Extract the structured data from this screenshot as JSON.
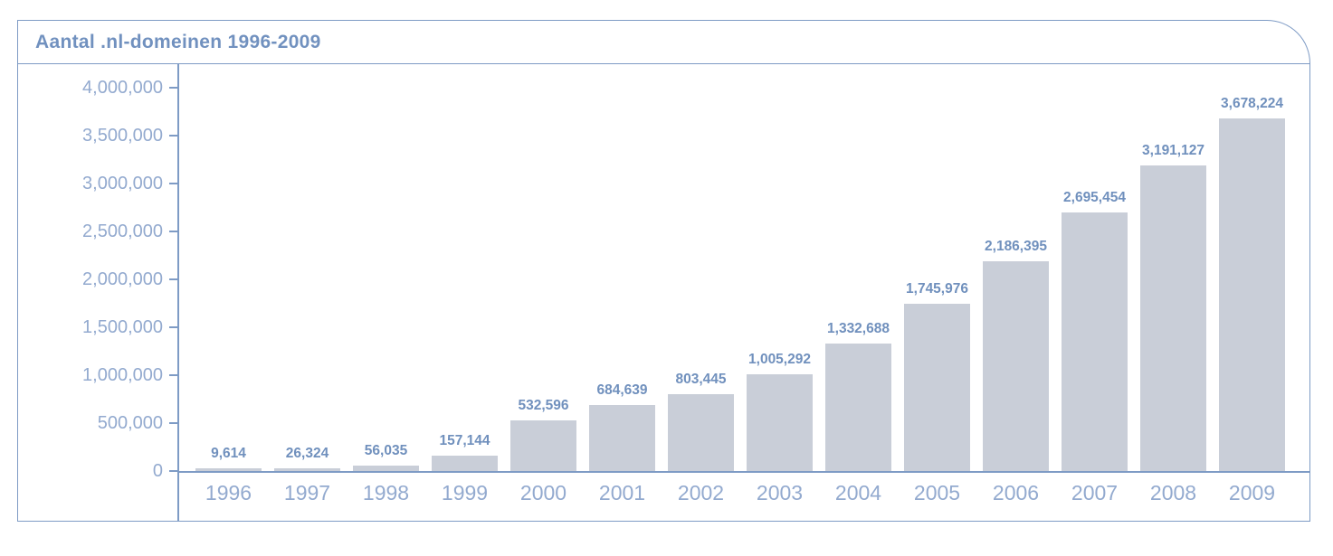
{
  "chart_data": {
    "type": "bar",
    "title": "Aantal .nl-domeinen 1996-2009",
    "categories": [
      "1996",
      "1997",
      "1998",
      "1999",
      "2000",
      "2001",
      "2002",
      "2003",
      "2004",
      "2005",
      "2006",
      "2007",
      "2008",
      "2009"
    ],
    "values": [
      9614,
      26324,
      56035,
      157144,
      532596,
      684639,
      803445,
      1005292,
      1332688,
      1745976,
      2186395,
      2695454,
      3191127,
      3678224
    ],
    "value_labels": [
      "9,614",
      "26,324",
      "56,035",
      "157,144",
      "532,596",
      "684,639",
      "803,445",
      "1,005,292",
      "1,332,688",
      "1,745,976",
      "2,186,395",
      "2,695,454",
      "3,191,127",
      "3,678,224"
    ],
    "xlabel": "",
    "ylabel": "",
    "ylim": [
      0,
      4000000
    ],
    "y_tick_step": 500000,
    "y_tick_labels": [
      "0",
      "500,000",
      "1,000,000",
      "1,500,000",
      "2,000,000",
      "2,500,000",
      "3,000,000",
      "3,500,000",
      "4,000,000"
    ],
    "grid": false,
    "legend": "none",
    "colors": {
      "bar_fill": "#c9ced8",
      "axis_line": "#7e9bc5",
      "panel_border": "#7e9bc5",
      "title_text": "#7191bf",
      "tick_label_text": "#93aacf",
      "year_label_text": "#93aacf",
      "value_label_text": "#7090bd",
      "background": "#ffffff"
    }
  }
}
